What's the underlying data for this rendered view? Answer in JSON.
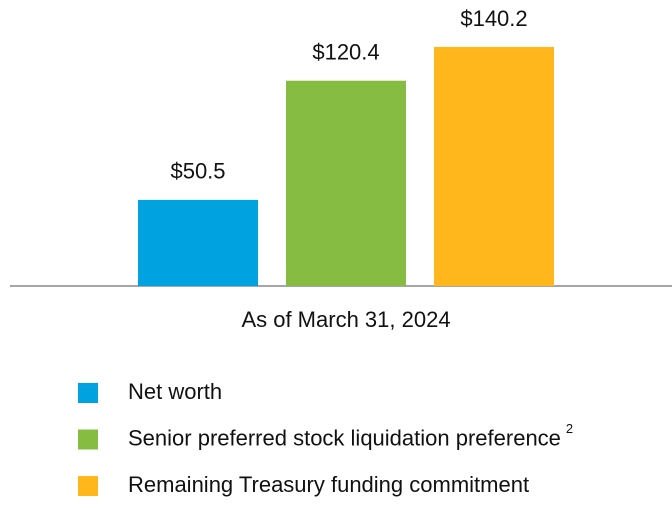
{
  "chart_data": {
    "type": "bar",
    "categories": [
      "As of March 31, 2024"
    ],
    "series": [
      {
        "name": "Net worth",
        "color": "#00a3e0",
        "values": [
          50.5
        ],
        "value_labels": [
          "$50.5"
        ]
      },
      {
        "name": "Senior preferred stock liquidation preference",
        "footnote": "2",
        "color": "#85bc41",
        "values": [
          120.4
        ],
        "value_labels": [
          "$120.4"
        ]
      },
      {
        "name": "Remaining Treasury funding commitment",
        "color": "#ffb71b",
        "values": [
          140.2
        ],
        "value_labels": [
          "$140.2"
        ]
      }
    ],
    "ylim": [
      0,
      150
    ]
  }
}
